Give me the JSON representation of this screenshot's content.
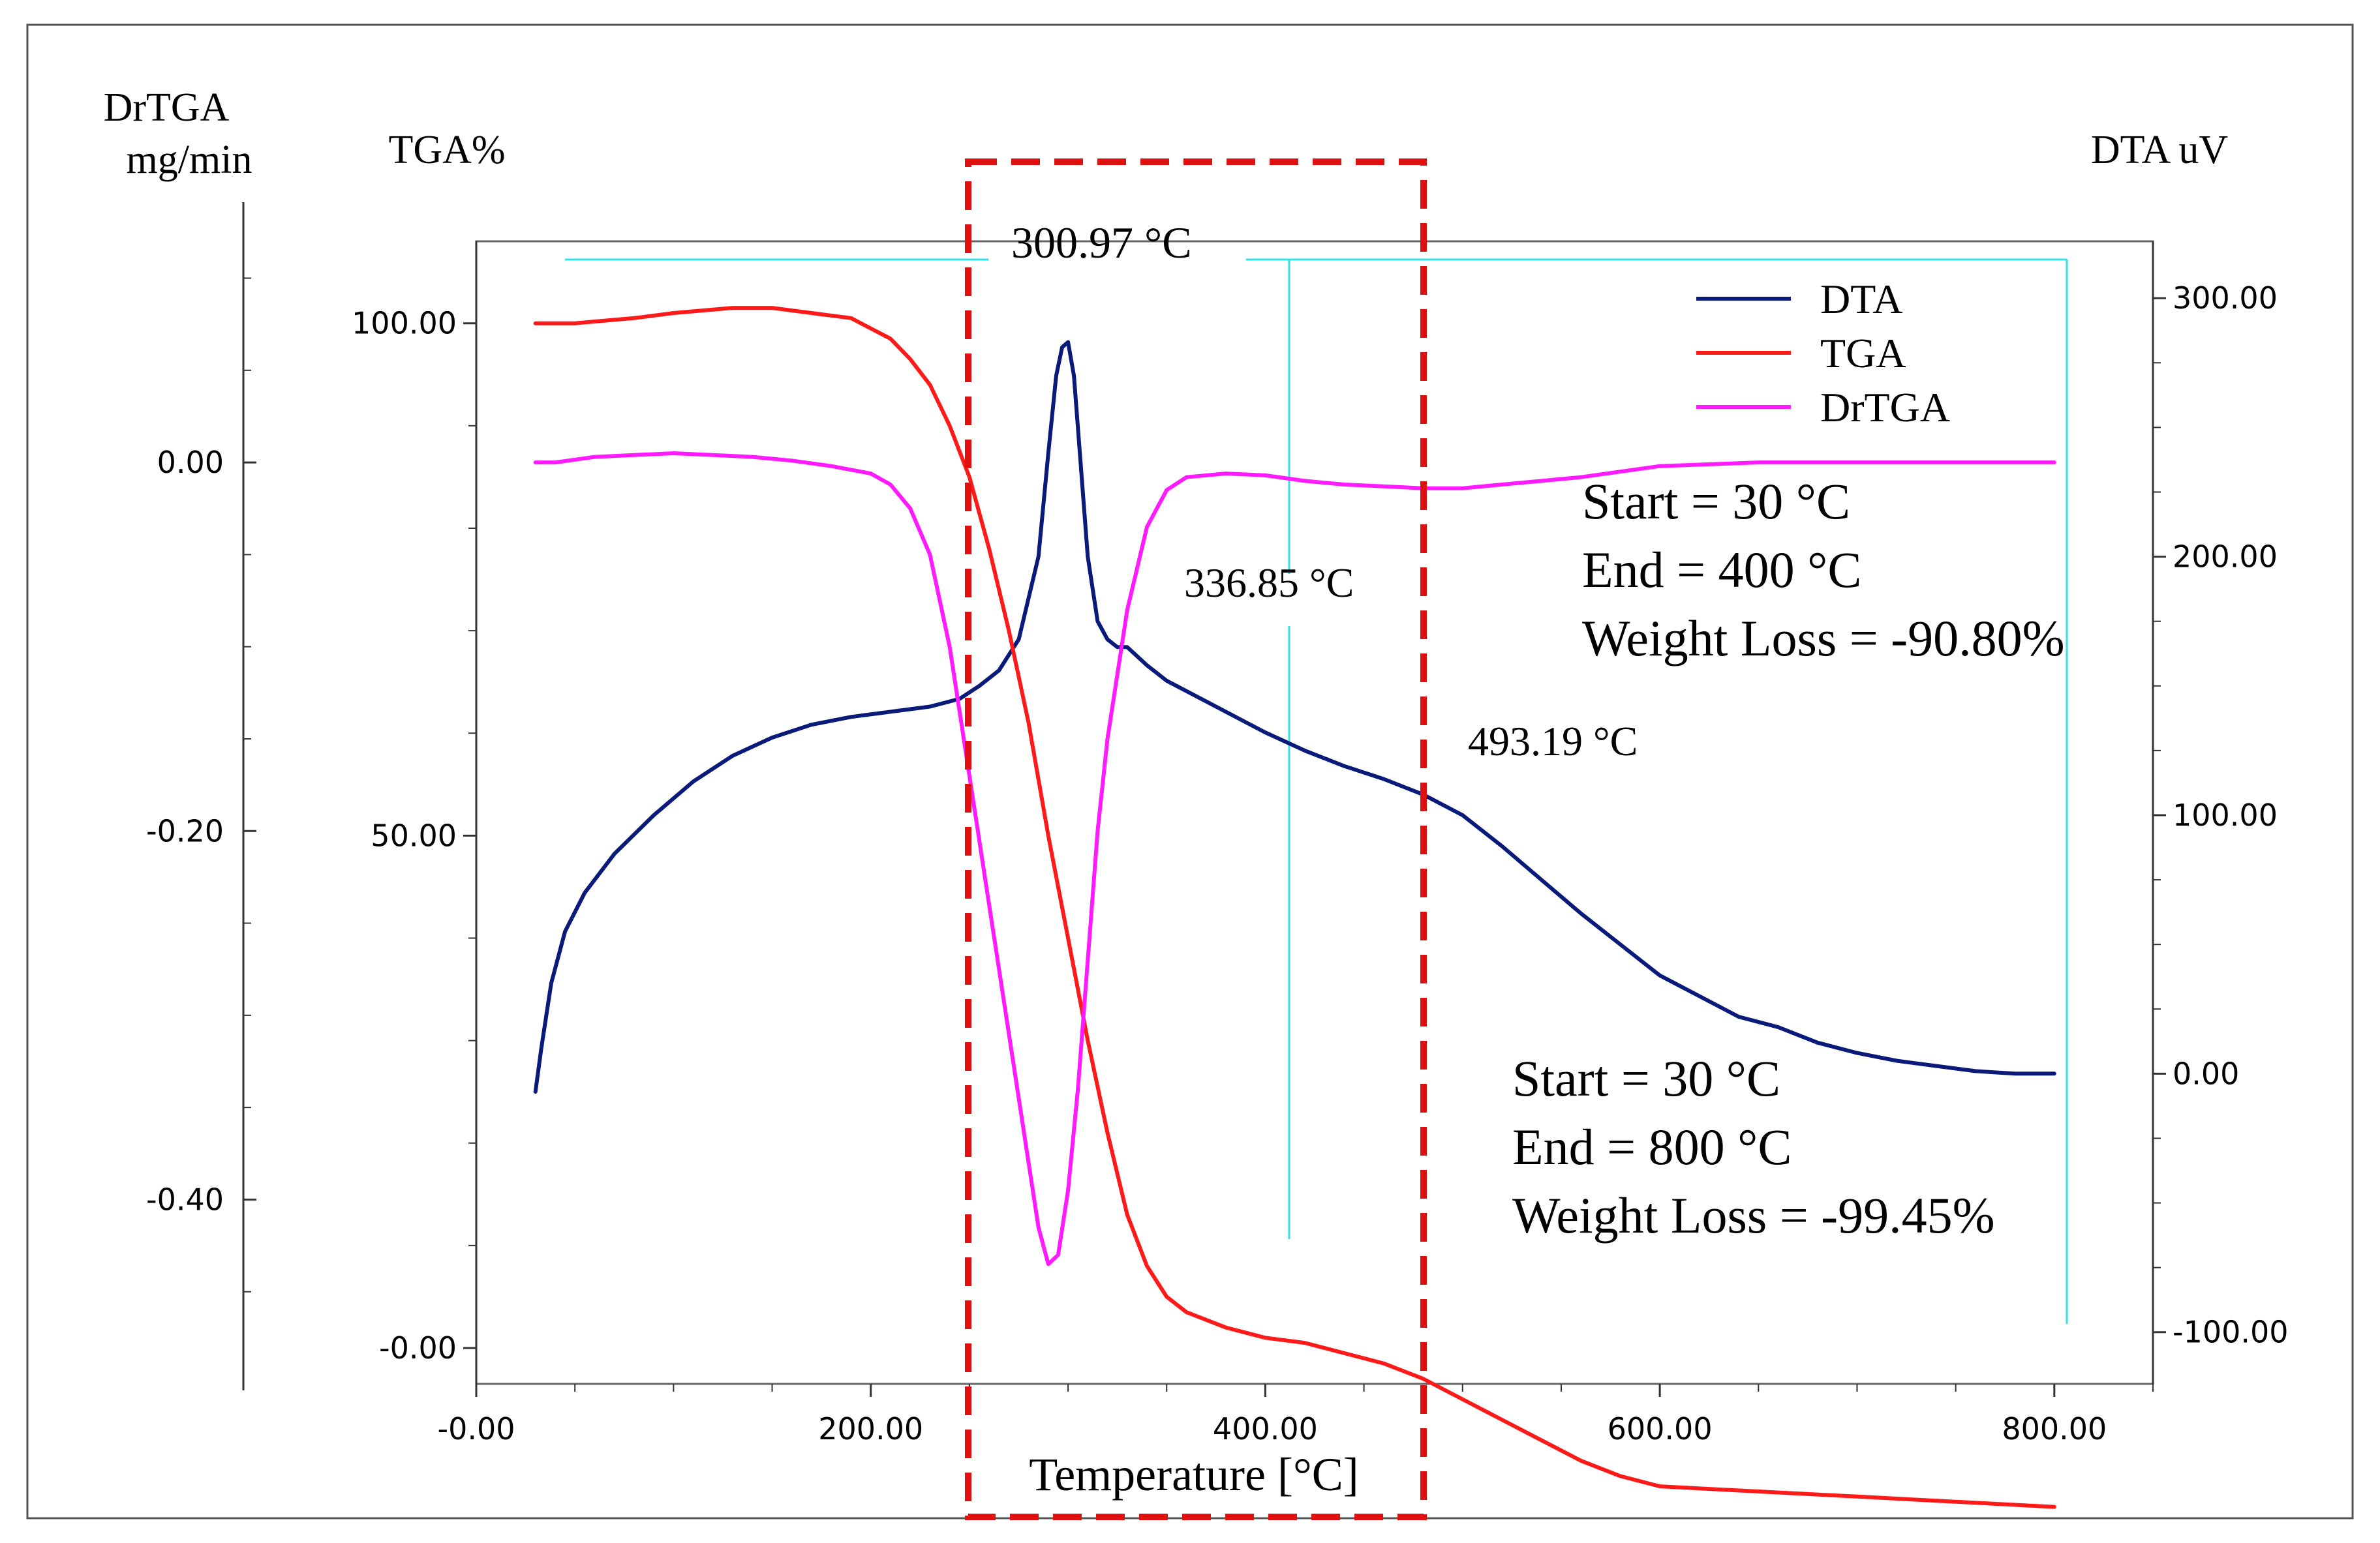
{
  "chart_data": {
    "type": "line",
    "title": "",
    "xlabel": "Temperature [°C]",
    "xlim": [
      0,
      850
    ],
    "xticks": [
      "-0.00",
      "200.00",
      "400.00",
      "600.00",
      "800.00"
    ],
    "xtick_values": [
      0,
      200,
      400,
      600,
      800
    ],
    "axes": {
      "drtga": {
        "label_line1": "DrTGA",
        "label_line2": "mg/min",
        "range": [
          -0.5,
          0.12
        ],
        "ticks": [
          "0.00",
          "-0.20",
          "-0.40"
        ],
        "tick_values": [
          0,
          -0.2,
          -0.4
        ]
      },
      "tga": {
        "label": "TGA%",
        "range": [
          -3.5,
          108
        ],
        "ticks": [
          "100.00",
          "50.00",
          "-0.00"
        ],
        "tick_values": [
          100,
          50,
          0
        ]
      },
      "dta": {
        "label": "DTA uV",
        "range": [
          -120,
          322
        ],
        "ticks": [
          "300.00",
          "200.00",
          "100.00",
          "0.00",
          "-100.00"
        ],
        "tick_values": [
          300,
          200,
          100,
          0,
          -100
        ]
      }
    },
    "legend": {
      "position": "top-right",
      "items": [
        {
          "name": "DTA",
          "color": "#0a1a7a"
        },
        {
          "name": "TGA",
          "color": "#ff1a1a"
        },
        {
          "name": "DrTGA",
          "color": "#ff1aff"
        }
      ]
    },
    "series": [
      {
        "name": "DTA",
        "axis": "dta",
        "color": "#0a1a7a",
        "x": [
          30,
          33,
          38,
          45,
          55,
          70,
          90,
          110,
          130,
          150,
          170,
          190,
          210,
          230,
          245,
          255,
          265,
          275,
          285,
          290,
          294,
          297,
          300,
          303,
          306,
          310,
          315,
          320,
          325,
          330,
          340,
          350,
          360,
          380,
          400,
          420,
          440,
          460,
          480,
          500,
          520,
          540,
          560,
          580,
          600,
          620,
          640,
          660,
          680,
          700,
          720,
          740,
          760,
          780,
          800
        ],
        "y": [
          -7,
          10,
          35,
          55,
          70,
          85,
          100,
          113,
          123,
          130,
          135,
          138,
          140,
          142,
          145,
          150,
          156,
          168,
          200,
          240,
          270,
          281,
          283,
          270,
          240,
          200,
          175,
          168,
          165,
          165,
          158,
          152,
          148,
          140,
          132,
          125,
          119,
          114,
          108,
          100,
          88,
          75,
          62,
          50,
          38,
          30,
          22,
          18,
          12,
          8,
          5,
          3,
          1,
          0,
          0
        ]
      },
      {
        "name": "TGA",
        "axis": "tga",
        "color": "#ff1a1a",
        "x": [
          30,
          50,
          80,
          100,
          130,
          150,
          170,
          190,
          200,
          210,
          220,
          230,
          240,
          250,
          260,
          270,
          280,
          290,
          300,
          310,
          320,
          330,
          340,
          350,
          360,
          380,
          400,
          420,
          440,
          460,
          480,
          500,
          520,
          540,
          560,
          580,
          600,
          650,
          700,
          750,
          800
        ],
        "y": [
          100,
          100,
          100.5,
          101,
          101.5,
          101.5,
          101,
          100.5,
          99.5,
          98.5,
          96.5,
          94,
          90,
          85,
          78,
          70,
          61,
          50,
          40,
          30,
          21,
          13,
          8,
          5,
          3.5,
          2,
          1,
          0.5,
          -0.5,
          -1.5,
          -3,
          -5,
          -7,
          -9,
          -11,
          -12.5,
          -13.5,
          -14,
          -14.5,
          -15,
          -15.5
        ]
      },
      {
        "name": "DrTGA",
        "axis": "drtga",
        "color": "#ff1aff",
        "x": [
          30,
          40,
          60,
          80,
          100,
          120,
          140,
          160,
          180,
          200,
          210,
          220,
          230,
          240,
          250,
          260,
          270,
          280,
          285,
          290,
          295,
          300,
          305,
          310,
          315,
          320,
          330,
          340,
          350,
          360,
          380,
          400,
          420,
          440,
          460,
          480,
          500,
          520,
          540,
          560,
          580,
          600,
          650,
          700,
          750,
          800
        ],
        "y": [
          0,
          0,
          0.003,
          0.004,
          0.005,
          0.004,
          0.003,
          0.001,
          -0.002,
          -0.006,
          -0.012,
          -0.025,
          -0.05,
          -0.1,
          -0.17,
          -0.24,
          -0.31,
          -0.38,
          -0.415,
          -0.435,
          -0.43,
          -0.395,
          -0.34,
          -0.27,
          -0.2,
          -0.15,
          -0.08,
          -0.035,
          -0.015,
          -0.008,
          -0.006,
          -0.007,
          -0.01,
          -0.012,
          -0.013,
          -0.014,
          -0.014,
          -0.012,
          -0.01,
          -0.008,
          -0.005,
          -0.002,
          0,
          0,
          0,
          0
        ]
      }
    ],
    "annotations": {
      "peak1": "300.97 °C",
      "peak2": "336.85 °C",
      "peak3": "493.19 °C",
      "box1": {
        "start": "Start = 30 °C",
        "end": "End = 400 °C",
        "loss": "Weight Loss = -90.80%"
      },
      "box2": {
        "start": "Start = 30 °C",
        "end": "End = 800 °C",
        "loss": "Weight Loss = -99.45%"
      }
    },
    "highlight_range_temperature": [
      240,
      475
    ],
    "integration_marks": [
      400,
      800
    ]
  }
}
